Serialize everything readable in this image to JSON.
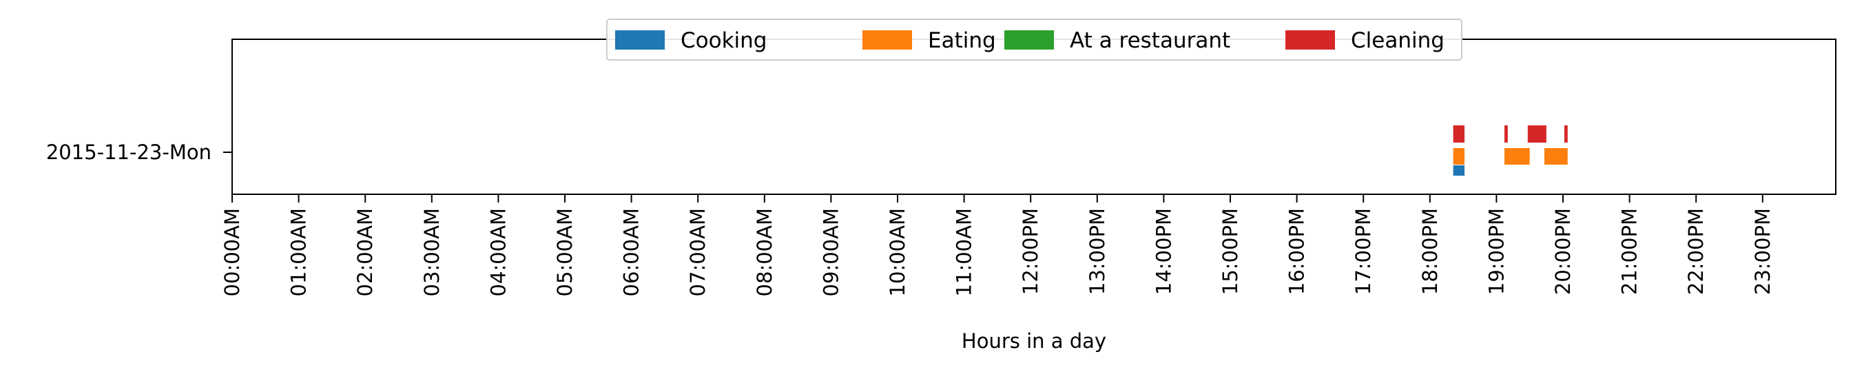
{
  "chart_data": {
    "type": "timeline",
    "xlabel": "Hours in a day",
    "ylabel": "",
    "xlim": [
      0,
      24
    ],
    "x_ticks": [
      "00:00AM",
      "01:00AM",
      "02:00AM",
      "03:00AM",
      "04:00AM",
      "05:00AM",
      "06:00AM",
      "07:00AM",
      "08:00AM",
      "09:00AM",
      "10:00AM",
      "11:00AM",
      "12:00PM",
      "13:00PM",
      "14:00PM",
      "15:00PM",
      "16:00PM",
      "17:00PM",
      "18:00PM",
      "19:00PM",
      "20:00PM",
      "21:00PM",
      "22:00PM",
      "23:00PM"
    ],
    "categories": [
      "2015-11-23-Mon"
    ],
    "legend_position": "top-center",
    "grid": false,
    "series": [
      {
        "name": "Cooking",
        "color": "#1f77b4",
        "intervals": [
          {
            "start": 18.35,
            "end": 18.52
          }
        ]
      },
      {
        "name": "Eating",
        "color": "#ff7f0e",
        "intervals": [
          {
            "start": 18.35,
            "end": 18.52
          },
          {
            "start": 19.12,
            "end": 19.5
          },
          {
            "start": 19.72,
            "end": 20.07
          }
        ]
      },
      {
        "name": "At a restaurant",
        "color": "#2ca02c",
        "intervals": []
      },
      {
        "name": "Cleaning",
        "color": "#d62728",
        "intervals": [
          {
            "start": 18.35,
            "end": 18.52
          },
          {
            "start": 19.12,
            "end": 19.17
          },
          {
            "start": 19.47,
            "end": 19.75
          },
          {
            "start": 20.02,
            "end": 20.07
          }
        ]
      }
    ]
  }
}
